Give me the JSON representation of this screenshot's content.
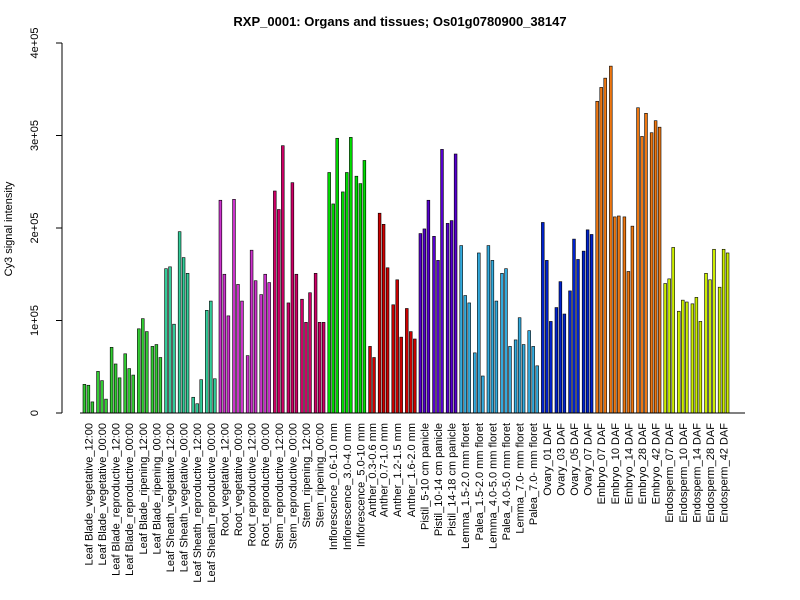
{
  "chart_data": {
    "type": "bar",
    "title": "RXP_0001: Organs and tissues; Os01g0780900_38147",
    "xlabel": "",
    "ylabel": "Cy3 signal intensity",
    "ylim": [
      0,
      400000
    ],
    "y_ticks": [
      0,
      100000,
      200000,
      300000,
      400000
    ],
    "y_tick_labels": [
      "0",
      "1e+05",
      "2e+05",
      "3e+05",
      "4e+05"
    ],
    "grid": false,
    "legend": "none",
    "groups": [
      {
        "label": "Leaf Blade_vegetative_12:00",
        "color": "#33CC33",
        "values": [
          31000,
          30000,
          12000
        ]
      },
      {
        "label": "Leaf Blade_vegetative_00:00",
        "color": "#33CC33",
        "values": [
          45000,
          35000,
          15000
        ]
      },
      {
        "label": "Leaf Blade_reproductive_12:00",
        "color": "#33CC33",
        "values": [
          71000,
          53000,
          38000
        ]
      },
      {
        "label": "Leaf Blade_reproductive_00:00",
        "color": "#33CC33",
        "values": [
          64000,
          48000,
          41000
        ]
      },
      {
        "label": "Leaf Blade_ripening_12:00",
        "color": "#33CC33",
        "values": [
          91000,
          102000,
          88000
        ]
      },
      {
        "label": "Leaf Blade_ripening_00:00",
        "color": "#33CC33",
        "values": [
          72000,
          74000,
          60000
        ]
      },
      {
        "label": "Leaf Sheath_vegetative_12:00",
        "color": "#33CC99",
        "values": [
          156000,
          158000,
          96000
        ]
      },
      {
        "label": "Leaf Sheath_vegetative_00:00",
        "color": "#33CC99",
        "values": [
          196000,
          168000,
          151000
        ]
      },
      {
        "label": "Leaf Sheath_reproductive_12:00",
        "color": "#33CC99",
        "values": [
          17000,
          10000,
          36000
        ]
      },
      {
        "label": "Leaf Sheath_reproductive_00:00",
        "color": "#33CC99",
        "values": [
          111000,
          121000,
          37000
        ]
      },
      {
        "label": "Root_vegetative_12:00",
        "color": "#CC33CC",
        "values": [
          230000,
          150000,
          105000
        ]
      },
      {
        "label": "Root_vegetative_00:00",
        "color": "#CC33CC",
        "values": [
          231000,
          139000,
          121000
        ]
      },
      {
        "label": "Root_reproductive_12:00",
        "color": "#CC33CC",
        "values": [
          62000,
          176000,
          143000
        ]
      },
      {
        "label": "Root_reproductive_00:00",
        "color": "#CC33CC",
        "values": [
          128000,
          150000,
          141000
        ]
      },
      {
        "label": "Stem_reproductive_12:00",
        "color": "#CC0066",
        "values": [
          240000,
          220000,
          289000
        ]
      },
      {
        "label": "Stem_reproductive_00:00",
        "color": "#CC0066",
        "values": [
          119000,
          249000,
          150000
        ]
      },
      {
        "label": "Stem_ripening_12:00",
        "color": "#CC0066",
        "values": [
          123000,
          98000,
          130000
        ]
      },
      {
        "label": "Stem_ripening_00:00",
        "color": "#CC0066",
        "values": [
          151000,
          98000,
          98000
        ]
      },
      {
        "label": "Inflorescence_0.6-1.0 mm",
        "color": "#00DD00",
        "values": [
          260000,
          226000,
          297000
        ]
      },
      {
        "label": "Inflorescence_3.0-4.0 mm",
        "color": "#00DD00",
        "values": [
          239000,
          260000,
          298000
        ]
      },
      {
        "label": "Inflorescence_5.0-10 mm",
        "color": "#00DD00",
        "values": [
          256000,
          248000,
          273000
        ]
      },
      {
        "label": "Anther_0.3-0.6 mm",
        "color": "#CC0000",
        "values": [
          72000,
          60000
        ]
      },
      {
        "label": "Anther_0.7-1.0 mm",
        "color": "#CC0000",
        "values": [
          216000,
          204000,
          157000
        ]
      },
      {
        "label": "Anther_1.2-1.5 mm",
        "color": "#CC0000",
        "values": [
          117000,
          144000,
          82000
        ]
      },
      {
        "label": "Anther_1.6-2.0 mm",
        "color": "#CC0000",
        "values": [
          113000,
          88000,
          80000
        ]
      },
      {
        "label": "Pistil_5-10 cm panicle",
        "color": "#5500CC",
        "values": [
          194000,
          199000,
          230000
        ]
      },
      {
        "label": "Pistil_10-14 cm panicle",
        "color": "#5500CC",
        "values": [
          191000,
          165000,
          285000
        ]
      },
      {
        "label": "Pistil_14-18 cm panicle",
        "color": "#5500CC",
        "values": [
          205000,
          208000,
          280000
        ]
      },
      {
        "label": "Lemma_1.5-2.0 mm floret",
        "color": "#33AADD",
        "values": [
          181000,
          127000,
          119000
        ]
      },
      {
        "label": "Palea_1.5-2.0 mm floret",
        "color": "#33AADD",
        "values": [
          65000,
          173000,
          40000
        ]
      },
      {
        "label": "Lemma_4.0-5.0 mm floret",
        "color": "#33AADD",
        "values": [
          181000,
          165000,
          121000
        ]
      },
      {
        "label": "Palea_4.0-5.0 mm floret",
        "color": "#33AADD",
        "values": [
          151000,
          156000,
          72000
        ]
      },
      {
        "label": "Lemma_7.0- mm floret",
        "color": "#33AADD",
        "values": [
          79000,
          103000,
          74000
        ]
      },
      {
        "label": "Palea_7.0- mm floret",
        "color": "#33AADD",
        "values": [
          89000,
          72000,
          51000
        ]
      },
      {
        "label": "Ovary_01 DAF",
        "color": "#0022CC",
        "values": [
          206000,
          165000,
          99000
        ]
      },
      {
        "label": "Ovary_03 DAF",
        "color": "#0022CC",
        "values": [
          114000,
          142000,
          107000
        ]
      },
      {
        "label": "Ovary_05 DAF",
        "color": "#0022CC",
        "values": [
          132000,
          188000,
          166000
        ]
      },
      {
        "label": "Ovary_07 DAF",
        "color": "#0022CC",
        "values": [
          175000,
          198000,
          193000
        ]
      },
      {
        "label": "Embryo_07 DAF",
        "color": "#EE7711",
        "values": [
          337000,
          352000,
          362000
        ]
      },
      {
        "label": "Embryo_10 DAF",
        "color": "#EE7711",
        "values": [
          375000,
          212000,
          213000
        ]
      },
      {
        "label": "Embryo_14 DAF",
        "color": "#EE7711",
        "values": [
          212000,
          153000,
          202000
        ]
      },
      {
        "label": "Embryo_28 DAF",
        "color": "#EE7711",
        "values": [
          330000,
          299000,
          324000
        ]
      },
      {
        "label": "Embryo_42 DAF",
        "color": "#EE7711",
        "values": [
          303000,
          316000,
          309000
        ]
      },
      {
        "label": "Endosperm_07 DAF",
        "color": "#CCEE00",
        "values": [
          140000,
          145000,
          179000
        ]
      },
      {
        "label": "Endosperm_10 DAF",
        "color": "#CCEE00",
        "values": [
          110000,
          122000,
          120000
        ]
      },
      {
        "label": "Endosperm_14 DAF",
        "color": "#CCEE00",
        "values": [
          118000,
          125000,
          99000
        ]
      },
      {
        "label": "Endosperm_28 DAF",
        "color": "#CCEE00",
        "values": [
          151000,
          144000,
          177000
        ]
      },
      {
        "label": "Endosperm_42 DAF",
        "color": "#CCEE00",
        "values": [
          136000,
          177000,
          173000
        ]
      }
    ],
    "tick_labels_shown": [
      "Leaf Blade_vegetative_12:00",
      "Leaf Blade_vegetative_00:00",
      "Leaf Blade_reproductive_12:00",
      "Leaf Blade_reproductive_00:00",
      "Leaf Blade_ripening_12:00",
      "Leaf Blade_ripening_00:00",
      "Leaf Sheath_vegetative_12:00",
      "Leaf Sheath_vegetative_00:00",
      "Leaf Sheath_reproductive_12:00",
      "Leaf Sheath_reproductive_00:00",
      "Root_vegetative_12:00",
      "Root_vegetative_00:00",
      "Root_reproductive_12:00",
      "Root_reproductive_00:00",
      "Stem_reproductive_12:00",
      "Stem_reproductive_00:00",
      "Stem_ripening_12:00",
      "Stem_ripening_00:00",
      "Inflorescence_0.6-1.0 mm",
      "Inflorescence_3.0-4.0 mm",
      "Inflorescence_5.0-10 mm",
      "Anther_0.3-0.6 mm",
      "Anther_0.7-1.0 mm",
      "Anther_1.2-1.5 mm",
      "Anther_1.6-2.0 mm",
      "Pistil_5-10 cm panicle",
      "Pistil_10-14 cm panicle",
      "Pistil_14-18 cm panicle",
      "Lemma_1.5-2.0 mm floret",
      "Palea_1.5-2.0 mm floret",
      "Lemma_4.0-5.0 mm floret",
      "Palea_4.0-5.0 mm floret",
      "Lemma_7.0- mm floret",
      "Palea_7.0- mm floret",
      "Ovary_01 DAF",
      "Ovary_03 DAF",
      "Ovary_05 DAF",
      "Ovary_07 DAF",
      "Embryo_07 DAF",
      "Embryo_10 DAF",
      "Embryo_14 DAF",
      "Embryo_28 DAF",
      "Embryo_42 DAF",
      "Endosperm_07 DAF",
      "Endosperm_10 DAF",
      "Endosperm_14 DAF",
      "Endosperm_28 DAF",
      "Endosperm_42 DAF"
    ]
  }
}
